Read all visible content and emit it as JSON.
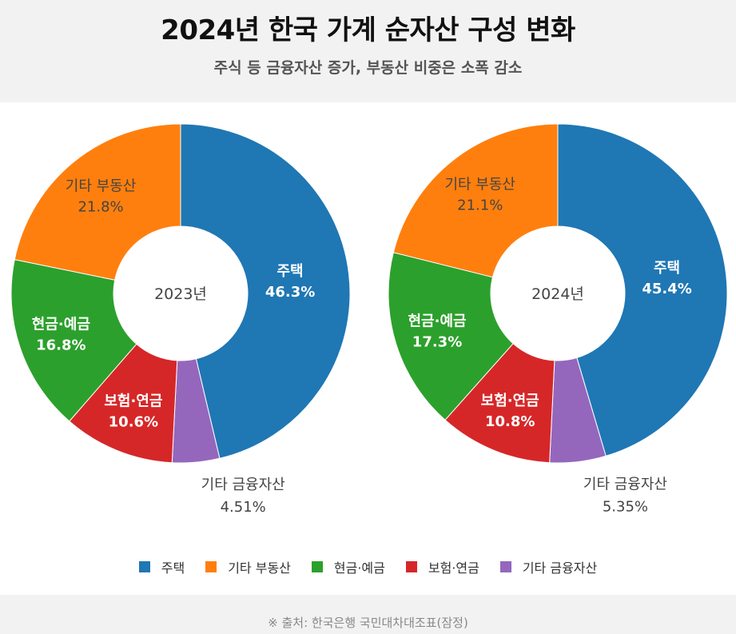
{
  "header": {
    "title": "2024년 한국 가계 순자산 구성 변화",
    "subtitle": "주식 등 금융자산 증가, 부동산 비중은 소폭 감소"
  },
  "colors": {
    "주택": "#1f77b4",
    "기타 부동산": "#ff7f0e",
    "현금·예금": "#2ca02c",
    "보험·연금": "#d62728",
    "기타 금융자산": "#9467bd"
  },
  "legend": {
    "items": [
      "주택",
      "기타 부동산",
      "현금·예금",
      "보험·연금",
      "기타 금융자산"
    ]
  },
  "chart_data": [
    {
      "type": "pie",
      "hole_label": "2023년",
      "categories": [
        "주택",
        "기타 금융자산",
        "보험·연금",
        "현금·예금",
        "기타 부동산"
      ],
      "values": [
        46.3,
        4.51,
        10.6,
        16.8,
        21.8
      ],
      "value_labels": [
        "46.3%",
        "4.51%",
        "10.6%",
        "16.8%",
        "21.8%"
      ]
    },
    {
      "type": "pie",
      "hole_label": "2024년",
      "categories": [
        "주택",
        "기타 금융자산",
        "보험·연금",
        "현금·예금",
        "기타 부동산"
      ],
      "values": [
        45.4,
        5.35,
        10.8,
        17.3,
        21.1
      ],
      "value_labels": [
        "45.4%",
        "5.35%",
        "10.8%",
        "17.3%",
        "21.1%"
      ]
    }
  ],
  "footer": {
    "source": "※ 출처: 한국은행 국민대차대조표(잠정)"
  }
}
